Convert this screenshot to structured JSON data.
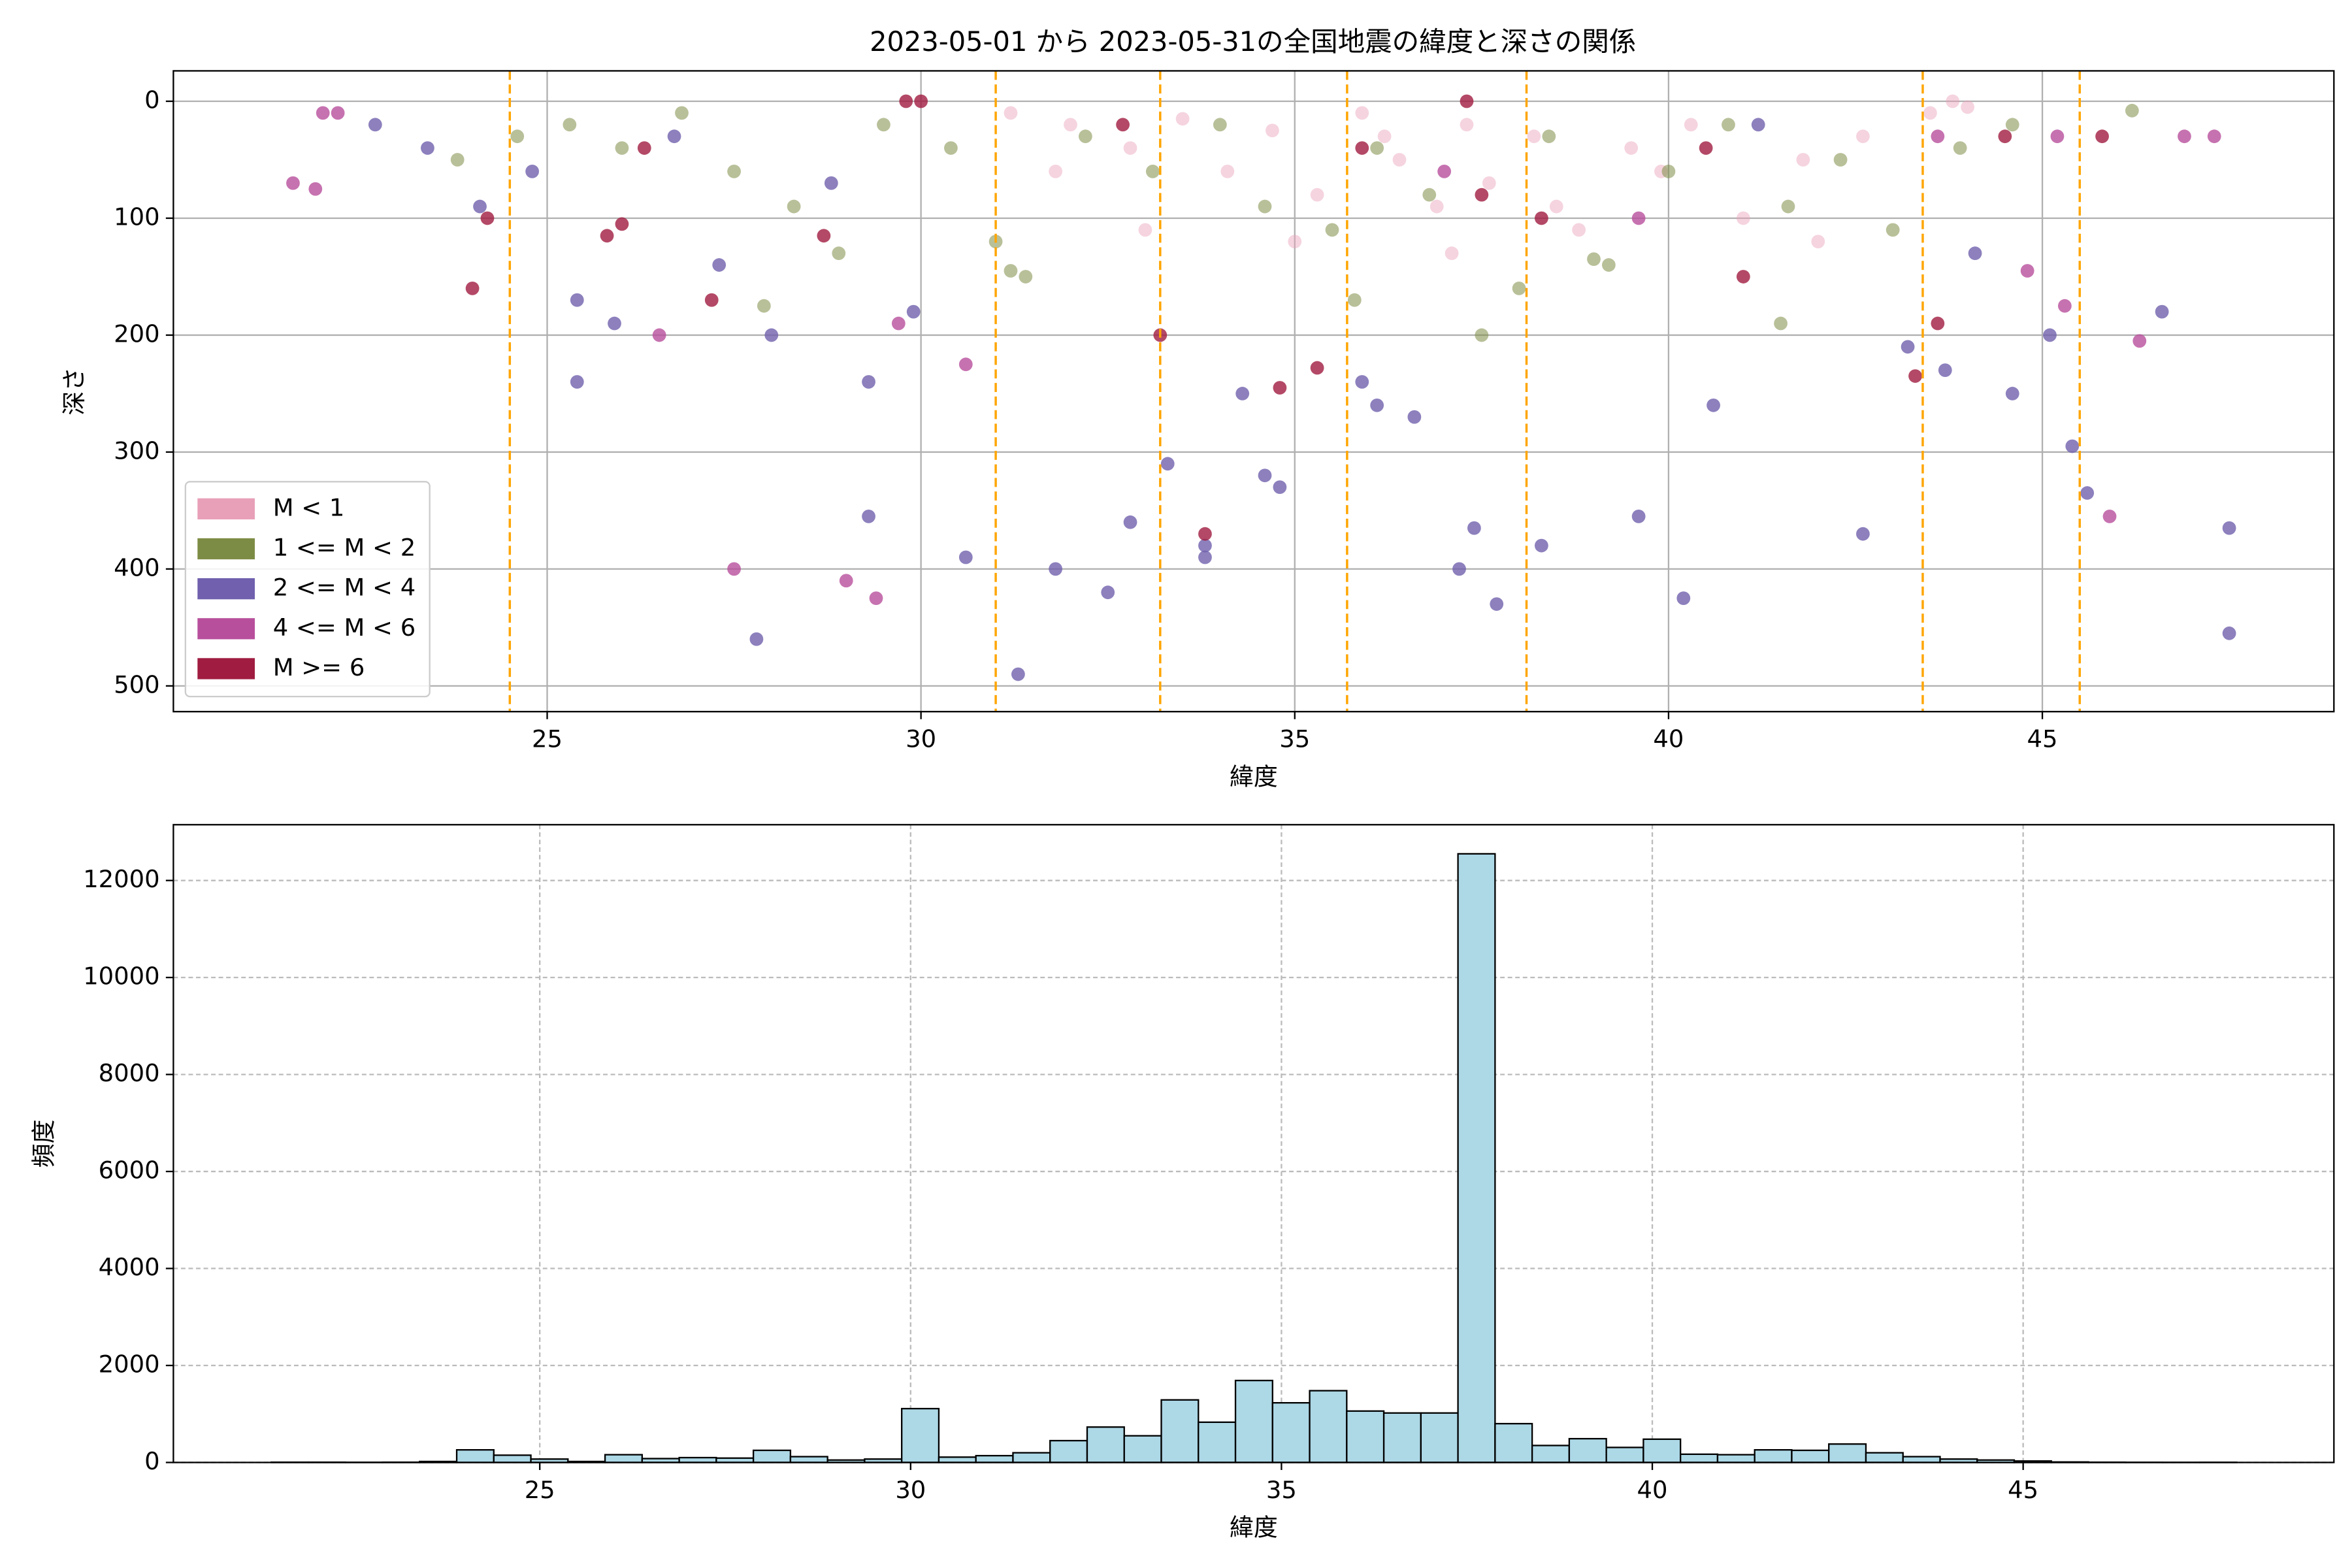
{
  "chart_data": [
    {
      "type": "scatter",
      "title": "2023-05-01 から 2023-05-31の全国地震の緯度と深さの関係",
      "xlabel": "緯度",
      "ylabel": "深さ",
      "xlim": [
        20.0,
        48.9
      ],
      "ylim": [
        522,
        -26
      ],
      "xticks": [
        25,
        30,
        35,
        40,
        45
      ],
      "yticks": [
        0,
        100,
        200,
        300,
        400,
        500
      ],
      "grid": true,
      "grid_linestyle": "solid",
      "legend": "lower left",
      "vlines": [
        24.5,
        31.0,
        33.2,
        35.7,
        38.1,
        43.4,
        45.5
      ],
      "vline_color": "#ffa500",
      "series": [
        {
          "name": "M < 1",
          "color": "#e8a0b8",
          "x": [
            31.2,
            32.0,
            32.8,
            33.5,
            34.1,
            34.7,
            35.3,
            35.9,
            36.4,
            36.9,
            37.3,
            37.6,
            38.2,
            38.8,
            39.5,
            40.3,
            41.0,
            41.8,
            42.6,
            43.5,
            44.0,
            31.8,
            33.0,
            35.0,
            36.2,
            37.1,
            38.5,
            39.9,
            42.0,
            43.8
          ],
          "values": [
            10,
            20,
            40,
            15,
            60,
            25,
            80,
            10,
            50,
            90,
            20,
            70,
            30,
            110,
            40,
            20,
            100,
            50,
            30,
            10,
            5,
            60,
            110,
            120,
            30,
            130,
            90,
            60,
            120,
            0
          ]
        },
        {
          "name": "1 <= M < 2",
          "color": "#7d8c45",
          "x": [
            23.8,
            24.6,
            25.3,
            26.0,
            26.8,
            27.5,
            28.3,
            28.9,
            29.5,
            30.4,
            31.0,
            31.4,
            32.2,
            33.1,
            34.0,
            34.6,
            35.5,
            36.1,
            36.8,
            37.5,
            38.4,
            39.2,
            40.0,
            40.8,
            41.6,
            42.3,
            43.0,
            43.9,
            44.6,
            46.2,
            27.9,
            31.2,
            35.8,
            38.0,
            39.0,
            41.5
          ],
          "values": [
            50,
            30,
            20,
            40,
            10,
            60,
            90,
            130,
            20,
            40,
            120,
            150,
            30,
            60,
            20,
            90,
            110,
            40,
            80,
            200,
            30,
            140,
            60,
            20,
            90,
            50,
            110,
            40,
            20,
            8,
            175,
            145,
            170,
            160,
            135,
            190
          ]
        },
        {
          "name": "2 <= M < 4",
          "color": "#7060ad",
          "x": [
            22.7,
            23.4,
            24.1,
            24.8,
            25.4,
            25.9,
            26.7,
            27.3,
            28.0,
            28.8,
            29.3,
            29.9,
            30.6,
            31.3,
            31.8,
            32.5,
            33.3,
            33.8,
            34.3,
            34.8,
            35.9,
            36.6,
            37.2,
            37.7,
            38.3,
            39.6,
            40.2,
            41.2,
            42.6,
            43.2,
            43.7,
            44.1,
            44.6,
            45.1,
            45.4,
            45.6,
            46.6,
            47.5,
            47.5,
            25.4,
            27.8,
            29.3,
            32.8,
            33.8,
            34.6,
            36.1,
            37.4,
            40.6
          ],
          "values": [
            20,
            40,
            90,
            60,
            240,
            190,
            30,
            140,
            200,
            70,
            240,
            180,
            390,
            490,
            400,
            420,
            310,
            390,
            250,
            330,
            240,
            270,
            400,
            430,
            380,
            355,
            425,
            20,
            370,
            210,
            230,
            130,
            250,
            200,
            295,
            335,
            180,
            365,
            455,
            170,
            460,
            355,
            360,
            380,
            320,
            260,
            365,
            260
          ]
        },
        {
          "name": "4 <= M < 6",
          "color": "#b84f9c",
          "x": [
            21.6,
            21.9,
            22.2,
            22.0,
            27.5,
            29.0,
            29.4,
            30.6,
            26.5,
            29.7,
            37.0,
            39.6,
            44.8,
            45.3,
            45.9,
            46.3,
            46.9,
            47.3,
            45.2,
            43.6
          ],
          "values": [
            70,
            75,
            10,
            10,
            400,
            410,
            425,
            225,
            200,
            190,
            60,
            100,
            145,
            175,
            355,
            205,
            30,
            30,
            30,
            30
          ]
        },
        {
          "name": "M >= 6",
          "color": "#a01c40",
          "x": [
            24.0,
            24.2,
            25.8,
            26.0,
            27.2,
            28.7,
            30.0,
            33.2,
            33.8,
            34.8,
            35.3,
            37.3,
            37.5,
            38.3,
            40.5,
            41.0,
            43.3,
            43.6,
            44.5,
            45.8,
            26.3,
            29.8,
            32.7,
            35.9
          ],
          "values": [
            160,
            100,
            115,
            105,
            170,
            115,
            0,
            200,
            370,
            245,
            228,
            0,
            80,
            100,
            40,
            150,
            235,
            190,
            30,
            30,
            40,
            0,
            20,
            40
          ]
        }
      ]
    },
    {
      "type": "histogram",
      "xlabel": "緯度",
      "ylabel": "頻度",
      "xlim": [
        20.06,
        49.19
      ],
      "ylim": [
        0,
        13150
      ],
      "xticks": [
        25,
        30,
        35,
        40,
        45
      ],
      "yticks": [
        0,
        2000,
        4000,
        6000,
        8000,
        10000,
        12000
      ],
      "grid": true,
      "grid_linestyle": "dashed",
      "color": "#add8e6",
      "edgecolor": "#000000",
      "bins": [
        21.38,
        21.88,
        22.38,
        22.88,
        23.38,
        23.88,
        24.38,
        24.88,
        25.38,
        25.88,
        26.38,
        26.88,
        27.38,
        27.88,
        28.38,
        28.88,
        29.38,
        29.88,
        30.38,
        30.88,
        31.38,
        31.88,
        32.38,
        32.88,
        33.38,
        33.88,
        34.38,
        34.88,
        35.38,
        35.88,
        36.38,
        36.88,
        37.38,
        37.88,
        38.38,
        38.88,
        39.38,
        39.88,
        40.38,
        40.88,
        41.38,
        41.88,
        42.38,
        42.88,
        43.38,
        43.88,
        44.38,
        44.88,
        45.38,
        45.88,
        46.38,
        46.88,
        47.38,
        47.88
      ],
      "values": [
        5,
        5,
        3,
        5,
        20,
        260,
        150,
        70,
        20,
        160,
        80,
        100,
        90,
        250,
        120,
        50,
        70,
        1110,
        110,
        140,
        200,
        450,
        730,
        550,
        1290,
        830,
        1690,
        1230,
        1480,
        1060,
        1020,
        1020,
        12550,
        800,
        350,
        490,
        310,
        480,
        170,
        160,
        260,
        250,
        380,
        200,
        120,
        70,
        50,
        30,
        10,
        5,
        3,
        2,
        3
      ]
    }
  ]
}
